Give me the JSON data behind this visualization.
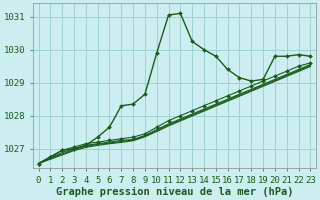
{
  "title": "Graphe pression niveau de la mer (hPa)",
  "bg_color": "#cceef0",
  "grid_color": "#99cccc",
  "line_color": "#1a5c1a",
  "xlim": [
    -0.5,
    23.5
  ],
  "ylim": [
    1026.4,
    1031.4
  ],
  "yticks": [
    1027,
    1028,
    1029,
    1030,
    1031
  ],
  "xticks": [
    0,
    1,
    2,
    3,
    4,
    5,
    6,
    7,
    8,
    9,
    10,
    11,
    12,
    13,
    14,
    15,
    16,
    17,
    18,
    19,
    20,
    21,
    22,
    23
  ],
  "series": [
    {
      "y": [
        1026.55,
        1026.75,
        1026.95,
        1027.0,
        1027.1,
        1027.35,
        1027.65,
        1028.3,
        1028.35,
        1028.65,
        1029.9,
        1031.05,
        1031.1,
        1030.25,
        1030.0,
        1029.8,
        1029.4,
        1029.15,
        1029.05,
        1029.1,
        1029.8,
        1029.8,
        1029.85,
        1029.8
      ],
      "marker": true,
      "lw": 1.0
    },
    {
      "y": [
        1026.55,
        1026.75,
        1026.95,
        1027.05,
        1027.15,
        1027.2,
        1027.25,
        1027.3,
        1027.35,
        1027.45,
        1027.65,
        1027.85,
        1028.0,
        1028.15,
        1028.3,
        1028.45,
        1028.6,
        1028.75,
        1028.9,
        1029.05,
        1029.2,
        1029.35,
        1029.5,
        1029.6
      ],
      "marker": true,
      "lw": 0.8
    },
    {
      "y": [
        1026.55,
        1026.72,
        1026.88,
        1027.0,
        1027.1,
        1027.15,
        1027.2,
        1027.25,
        1027.28,
        1027.4,
        1027.58,
        1027.75,
        1027.9,
        1028.05,
        1028.2,
        1028.35,
        1028.5,
        1028.65,
        1028.8,
        1028.95,
        1029.1,
        1029.25,
        1029.4,
        1029.55
      ],
      "marker": false,
      "lw": 0.8
    },
    {
      "y": [
        1026.55,
        1026.7,
        1026.84,
        1026.97,
        1027.07,
        1027.13,
        1027.17,
        1027.22,
        1027.26,
        1027.38,
        1027.55,
        1027.72,
        1027.87,
        1028.02,
        1028.17,
        1028.32,
        1028.47,
        1028.62,
        1028.77,
        1028.92,
        1029.07,
        1029.22,
        1029.37,
        1029.52
      ],
      "marker": false,
      "lw": 0.8
    },
    {
      "y": [
        1026.55,
        1026.68,
        1026.81,
        1026.94,
        1027.04,
        1027.1,
        1027.15,
        1027.19,
        1027.24,
        1027.36,
        1027.52,
        1027.69,
        1027.84,
        1027.99,
        1028.14,
        1028.29,
        1028.44,
        1028.59,
        1028.74,
        1028.89,
        1029.04,
        1029.19,
        1029.34,
        1029.49
      ],
      "marker": false,
      "lw": 0.8
    }
  ],
  "xlabel_fontsize": 7.5,
  "tick_fontsize": 6.5
}
